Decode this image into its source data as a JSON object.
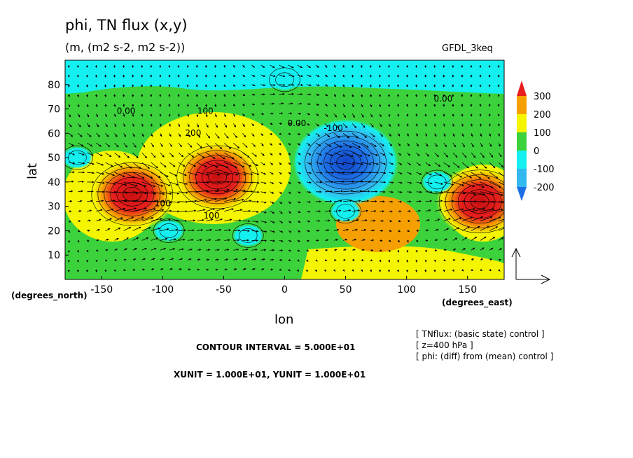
{
  "chart_data": {
    "type": "heatmap",
    "title": "phi, TN flux (x,y)",
    "subtitle": "(m, (m2 s-2, m2 s-2))",
    "model": "GFDL_3keq",
    "xlabel": "lon",
    "ylabel": "lat",
    "x_unit_label": "(degrees_east)",
    "y_unit_label": "(degrees_north)",
    "xlim": [
      -180,
      180
    ],
    "ylim": [
      0,
      90
    ],
    "x_ticks": [
      -150,
      -100,
      -50,
      0,
      50,
      100,
      150
    ],
    "y_ticks": [
      10,
      20,
      30,
      40,
      50,
      60,
      70,
      80
    ],
    "colorbar": {
      "levels": [
        -200,
        -100,
        0,
        100,
        200,
        300
      ],
      "labels": [
        "300",
        "200",
        "100",
        "0",
        "-100",
        "-200"
      ],
      "colors": [
        "#1e6fe6",
        "#34b8f0",
        "#14f0f0",
        "#3cd23c",
        "#f5f500",
        "#f5a000",
        "#e81e1e"
      ]
    },
    "contour_labels": [
      "0.00",
      "100",
      "200",
      "-100",
      "0.00",
      "0.00",
      "100",
      "100"
    ],
    "anomaly_centers": [
      {
        "lon": -125,
        "lat": 35,
        "value": 300
      },
      {
        "lon": -55,
        "lat": 42,
        "value": 300
      },
      {
        "lon": 50,
        "lat": 48,
        "value": -200
      },
      {
        "lon": 160,
        "lat": 32,
        "value": 300
      },
      {
        "lon": -170,
        "lat": 50,
        "value": -100
      },
      {
        "lon": -95,
        "lat": 20,
        "value": -100
      },
      {
        "lon": -30,
        "lat": 18,
        "value": -100
      },
      {
        "lon": 50,
        "lat": 28,
        "value": -100
      },
      {
        "lon": 125,
        "lat": 40,
        "value": -100
      },
      {
        "lon": 0,
        "lat": 82,
        "value": -100
      }
    ],
    "grid": false
  },
  "footer": {
    "contour_interval": "CONTOUR INTERVAL = 5.000E+01",
    "units": "XUNIT = 1.000E+01, YUNIT = 1.000E+01"
  },
  "notes": [
    "[ TNflux: (basic state) control ]",
    "[ z=400 hPa ]",
    "[ phi: (diff) from (mean) control ]"
  ]
}
